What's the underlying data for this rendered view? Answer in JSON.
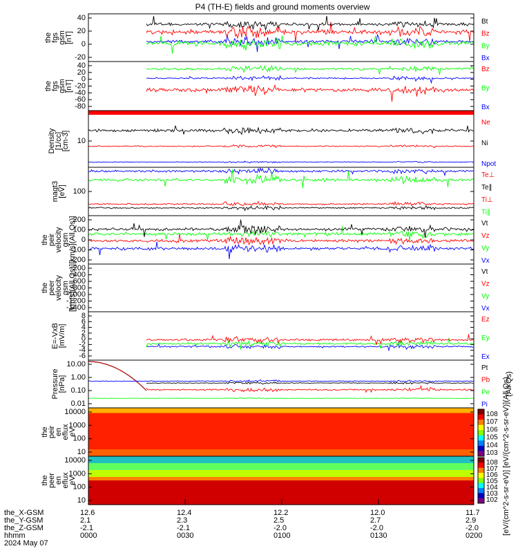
{
  "title": "P4 (TH-E) fields and ground moments overview",
  "colors": {
    "black": "#000000",
    "red": "#ff0000",
    "green": "#00ff00",
    "blue": "#0000ff"
  },
  "chart_data": [
    {
      "type": "line",
      "panel": "fgs_dsl",
      "ylabel": [
        "the",
        "fgs",
        "gsm",
        "[nT]"
      ],
      "ylim": [
        -35,
        45
      ],
      "yticks": [
        "40",
        "20",
        "0",
        "-20"
      ],
      "series": [
        {
          "name": "Bt",
          "color": "#000000",
          "level": 30
        },
        {
          "name": "Bz",
          "color": "#ff0000",
          "level": 20
        },
        {
          "name": "By",
          "color": "#00ff00",
          "level": -5
        },
        {
          "name": "Bx",
          "color": "#0000ff",
          "level": 0
        }
      ]
    },
    {
      "type": "line",
      "panel": "fgs_gsm",
      "ylabel": [
        "the",
        "fgs",
        "gsm",
        "[nT]"
      ],
      "ylim": [
        -100,
        40
      ],
      "yticks": [
        "40",
        "20",
        "0",
        "-20",
        "-40",
        "-60",
        "-80"
      ],
      "series": [
        {
          "name": "Bz",
          "color": "#ff0000",
          "level": -40
        },
        {
          "name": "By",
          "color": "#00ff00",
          "level": 20
        },
        {
          "name": "Bx",
          "color": "#0000ff",
          "level": 0
        }
      ]
    },
    {
      "type": "line",
      "panel": "density",
      "ylabel": [
        "Density",
        "[1/cc]",
        "[cm-3]"
      ],
      "yticks": [
        "10"
      ],
      "series": [
        {
          "name": "Ne",
          "color": "#ff0000"
        },
        {
          "name": "Ni",
          "color": "#000000"
        },
        {
          "name": "Npot",
          "color": "#0000ff"
        }
      ]
    },
    {
      "type": "line",
      "panel": "temperature",
      "ylabel": [
        "magt3",
        "[eV]"
      ],
      "yticks": [
        "100"
      ],
      "series": [
        {
          "name": "Te⊥",
          "color": "#ff0000"
        },
        {
          "name": "Te∥",
          "color": "#000000"
        },
        {
          "name": "Ti⊥",
          "color": "#ff0000"
        },
        {
          "name": "Ti∥",
          "color": "#00ff00"
        }
      ]
    },
    {
      "type": "line",
      "panel": "peir_velocity",
      "ylabel": [
        "the",
        "peir",
        "velocity",
        "gsm",
        "[km/s](All Qs)]"
      ],
      "ylim": [
        -250,
        250
      ],
      "yticks": [
        "200",
        "100",
        "0",
        "-100",
        "-200"
      ],
      "series": [
        {
          "name": "Vt",
          "color": "#000000",
          "level": 100
        },
        {
          "name": "Vz",
          "color": "#ff0000",
          "level": 0
        },
        {
          "name": "Vy",
          "color": "#00ff00",
          "level": 50
        },
        {
          "name": "Vx",
          "color": "#0000ff",
          "level": -80
        }
      ]
    },
    {
      "type": "line",
      "panel": "peer_velocity",
      "ylabel": [
        "the",
        "peer",
        "velocity",
        "gsm",
        "[km/s](All Qs)]"
      ],
      "ylim": [
        -1450,
        0
      ],
      "yticks": [
        "-200",
        "-400",
        "-600",
        "-800",
        "-1000",
        "-1200",
        "-1400"
      ],
      "series": [
        {
          "name": "Vt",
          "color": "#000000"
        },
        {
          "name": "Vz",
          "color": "#ff0000"
        },
        {
          "name": "Vy",
          "color": "#00ff00"
        },
        {
          "name": "Vx",
          "color": "#0000ff"
        }
      ]
    },
    {
      "type": "line",
      "panel": "efield",
      "ylabel": [
        "E=-VxB",
        "[mV/m]"
      ],
      "ylim": [
        -7,
        8
      ],
      "yticks": [
        "8",
        "6",
        "4",
        "2",
        "0",
        "-2",
        "-4",
        "-6"
      ],
      "series": [
        {
          "name": "Ez",
          "color": "#ff0000",
          "level": 1.5
        },
        {
          "name": "Ey",
          "color": "#00ff00",
          "level": 0
        },
        {
          "name": "Ex",
          "color": "#0000ff",
          "level": -1
        }
      ]
    },
    {
      "type": "line",
      "panel": "pressure",
      "ylabel": [
        "Pressure",
        "[nPa]"
      ],
      "yticks": [
        "10.00",
        "1.00",
        "0.10",
        "0.01"
      ],
      "side_note": "(All Qs)",
      "series": [
        {
          "name": "Pt",
          "color": "#000000"
        },
        {
          "name": "Pb",
          "color": "#ff0000"
        },
        {
          "name": "Pe",
          "color": "#00ff00"
        },
        {
          "name": "Pi",
          "color": "#0000ff"
        }
      ]
    },
    {
      "type": "heatmap",
      "panel": "peir_en_eflux",
      "ylabel": [
        "the",
        "peir",
        "en",
        "eflux",
        "eV",
        "[eV/(cm^2-s-",
        "sr-eV)]"
      ],
      "yticks": [
        "10000",
        "1000",
        "100",
        "10"
      ],
      "colorbar_ticks": [
        "10^8",
        "10^7",
        "10^6",
        "10^5",
        "10^4",
        "10^3"
      ]
    },
    {
      "type": "heatmap",
      "panel": "peer_en_eflux",
      "ylabel": [
        "the",
        "peer",
        "en",
        "eflux",
        "eV",
        "[eV/(cm^2-s-",
        "sr-eV)]"
      ],
      "yticks": [
        "10000",
        "1000",
        "100",
        "10"
      ],
      "colorbar_ticks": [
        "10^8",
        "10^7",
        "10^6",
        "10^5",
        "10^4",
        "10^3",
        "10^2"
      ]
    }
  ],
  "colorbar_label": "[eV/(cm^2-s-sr-eV)] [eV/(cm^2-s-sr-eV)](All Qs)",
  "x_axis": {
    "rows": [
      {
        "label": "the_X-GSM",
        "values": [
          "12.6",
          "12.4",
          "12.2",
          "12.0",
          "11.7"
        ]
      },
      {
        "label": "the_Y-GSM",
        "values": [
          "2.1",
          "2.3",
          "2.5",
          "2.7",
          "2.9"
        ]
      },
      {
        "label": "the_Z-GSM",
        "values": [
          "-2.1",
          "-2.1",
          "-2.0",
          "-2.0",
          "-2.0"
        ]
      },
      {
        "label": "hhmm",
        "values": [
          "0000",
          "0030",
          "0100",
          "0130",
          "0200"
        ]
      }
    ],
    "date": "2024 May 07"
  }
}
